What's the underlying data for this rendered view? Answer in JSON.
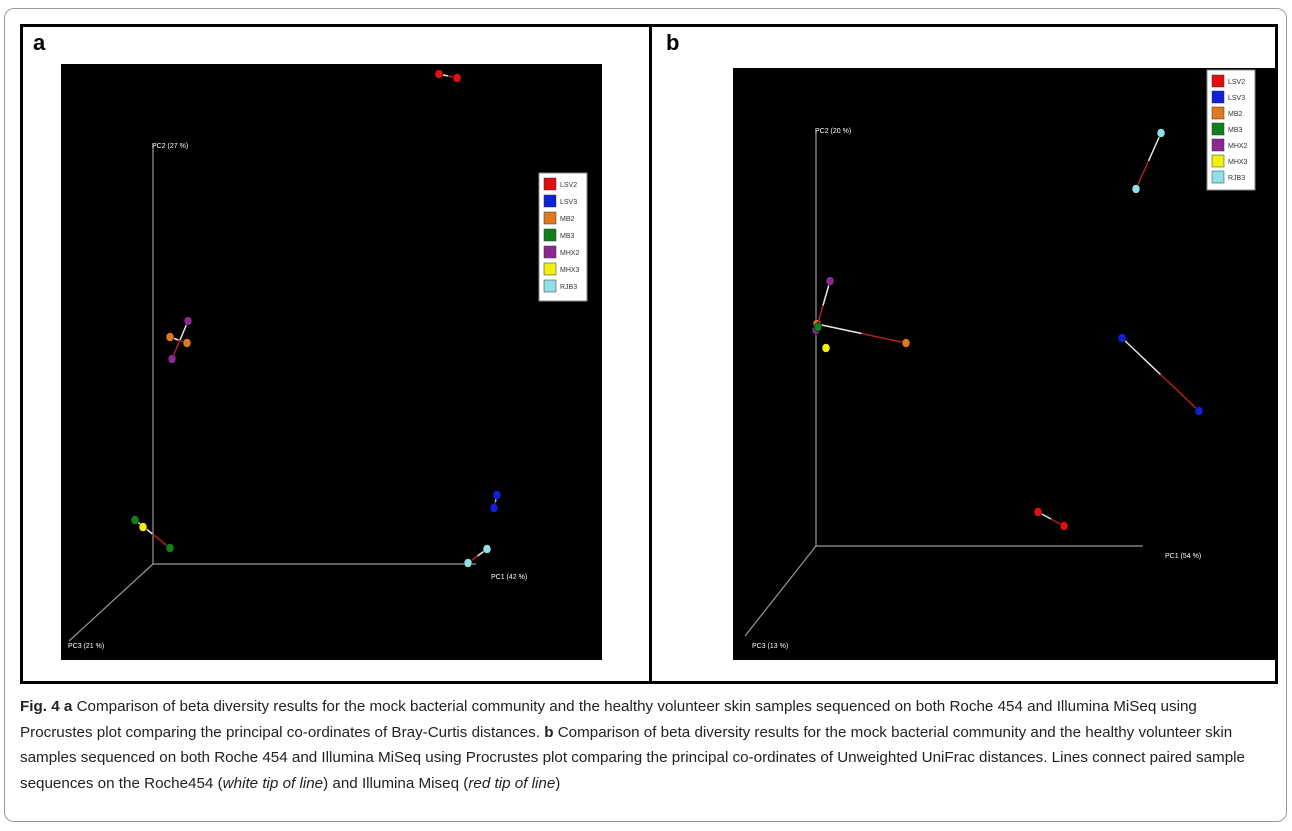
{
  "panels": [
    {
      "letter": "a",
      "axes": {
        "pc1": "PC1 (42 %)",
        "pc2": "PC2 (27 %)",
        "pc3": "PC3 (21 %)"
      },
      "legend": [
        "LSV2",
        "LSV3",
        "MB2",
        "MB3",
        "MHX2",
        "MHX3",
        "RJB3"
      ]
    },
    {
      "letter": "b",
      "axes": {
        "pc1": "PC1 (54 %)",
        "pc2": "PC2 (20 %)",
        "pc3": "PC3 (13 %)"
      },
      "legend": [
        "LSV2",
        "LSV3",
        "MB2",
        "MB3",
        "MHX2",
        "MHX3",
        "RJB3"
      ]
    }
  ],
  "colors": {
    "LSV2": "#e01010",
    "LSV3": "#1020d8",
    "MB2": "#e07820",
    "MB3": "#10801a",
    "MHX2": "#8a2a90",
    "MHX3": "#f0f010",
    "RJB3": "#90e0e8"
  },
  "caption": {
    "fig_label": "Fig. 4",
    "a_label": "a",
    "a_text": " Comparison of beta diversity results for the mock bacterial community and the healthy volunteer skin samples sequenced on both Roche 454 and Illumina MiSeq using Procrustes plot comparing the principal co-ordinates of Bray-Curtis distances. ",
    "b_label": "b",
    "b_text": " Comparison of beta diversity results for the mock bacterial community and the healthy volunteer skin samples sequenced on both Roche 454 and Illumina MiSeq using Procrustes plot comparing the principal co-ordinates of Unweighted UniFrac distances. Lines connect paired sample sequences on the Roche454 (",
    "white_tip": "white tip of line",
    "mid_text": ") and Illumina Miseq (",
    "red_tip": "red tip of line",
    "end_text": ")"
  }
}
